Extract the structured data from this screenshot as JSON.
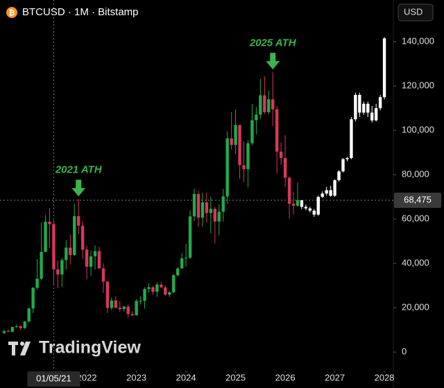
{
  "chart_data": {
    "type": "candlestick",
    "title": "BTCUSD · 1M · Bitstamp",
    "currency": "USD",
    "watermark": "TradingView",
    "x": [
      "2020-05",
      "2020-06",
      "2020-07",
      "2020-08",
      "2020-09",
      "2020-10",
      "2020-11",
      "2020-12",
      "2021-01",
      "2021-02",
      "2021-03",
      "2021-04",
      "2021-05",
      "2021-06",
      "2021-07",
      "2021-08",
      "2021-09",
      "2021-10",
      "2021-11",
      "2021-12",
      "2022-01",
      "2022-02",
      "2022-03",
      "2022-04",
      "2022-05",
      "2022-06",
      "2022-07",
      "2022-08",
      "2022-09",
      "2022-10",
      "2022-11",
      "2022-12",
      "2023-01",
      "2023-02",
      "2023-03",
      "2023-04",
      "2023-05",
      "2023-06",
      "2023-07",
      "2023-08",
      "2023-09",
      "2023-10",
      "2023-11",
      "2023-12",
      "2024-01",
      "2024-02",
      "2024-03",
      "2024-04",
      "2024-05",
      "2024-06",
      "2024-07",
      "2024-08",
      "2024-09",
      "2024-10",
      "2024-11",
      "2024-12",
      "2025-01",
      "2025-02",
      "2025-03",
      "2025-04",
      "2025-05",
      "2025-06",
      "2025-07",
      "2025-08",
      "2025-09",
      "2025-10",
      "2025-11",
      "2025-12",
      "2026-01",
      "2026-02",
      "2026-03",
      "2026-04"
    ],
    "open": [
      8600,
      9450,
      9140,
      11350,
      11650,
      10780,
      13800,
      19700,
      28990,
      33100,
      45200,
      58800,
      57700,
      37300,
      35000,
      41500,
      47100,
      43800,
      61300,
      57000,
      46200,
      38500,
      43200,
      45500,
      37700,
      31800,
      19900,
      23300,
      20050,
      19400,
      20500,
      17150,
      16550,
      23100,
      23150,
      28450,
      29250,
      27200,
      30450,
      29200,
      25900,
      26950,
      34650,
      37700,
      42250,
      42600,
      61200,
      71300,
      60600,
      67500,
      62700,
      64600,
      58900,
      63300,
      70200,
      96400,
      93400,
      102400,
      84300,
      82500,
      94200,
      104600,
      107100,
      115800,
      108200,
      114000,
      109500,
      90400,
      87500,
      78600,
      66900,
      66000
    ],
    "high": [
      10000,
      10400,
      11400,
      12450,
      12050,
      14100,
      19900,
      29300,
      41950,
      58350,
      61800,
      64900,
      59600,
      41300,
      42400,
      50500,
      52900,
      67000,
      69000,
      59100,
      47900,
      45800,
      48200,
      47400,
      40000,
      31900,
      24600,
      25200,
      22800,
      20900,
      21500,
      18400,
      23900,
      25200,
      29200,
      31000,
      29800,
      31400,
      31800,
      30200,
      27500,
      35200,
      38400,
      44700,
      48900,
      64000,
      73800,
      72700,
      71900,
      72000,
      70000,
      65600,
      66500,
      73600,
      99600,
      108300,
      109400,
      102500,
      95000,
      95700,
      111900,
      110500,
      123200,
      124400,
      117900,
      126200,
      111000,
      94600,
      97900,
      79200,
      72000,
      76500
    ],
    "low": [
      8100,
      8900,
      8900,
      10900,
      9850,
      10400,
      13200,
      17600,
      28130,
      32300,
      44950,
      47000,
      30000,
      28800,
      29300,
      37300,
      39600,
      43300,
      53300,
      42000,
      32900,
      34300,
      37200,
      37700,
      26700,
      17600,
      18800,
      19600,
      18200,
      18200,
      15500,
      16300,
      16500,
      21400,
      19600,
      26900,
      25800,
      24800,
      28900,
      25400,
      24900,
      26550,
      34100,
      37600,
      38500,
      41900,
      59100,
      56500,
      56600,
      58400,
      53500,
      49000,
      52600,
      58900,
      66800,
      91300,
      89200,
      78200,
      76600,
      74400,
      93300,
      98200,
      105100,
      107300,
      107300,
      102000,
      80600,
      84400,
      74500,
      60100,
      62000,
      65500
    ],
    "close": [
      9450,
      9140,
      11350,
      11650,
      10780,
      13800,
      19700,
      28990,
      33100,
      45200,
      58800,
      57700,
      37300,
      35000,
      41500,
      47100,
      43800,
      61300,
      57000,
      46200,
      38500,
      43200,
      45500,
      37700,
      31800,
      19900,
      23300,
      20050,
      19400,
      20500,
      17150,
      16550,
      23100,
      23150,
      28450,
      29250,
      27200,
      30450,
      29200,
      25900,
      26950,
      34650,
      37700,
      42250,
      42600,
      61200,
      71300,
      60600,
      67500,
      62700,
      64600,
      58900,
      63300,
      70200,
      96400,
      93400,
      102400,
      84300,
      82500,
      94200,
      104600,
      107100,
      115800,
      108200,
      114000,
      109500,
      90400,
      87500,
      78600,
      66900,
      66000,
      68475
    ],
    "up_color": "#22ab4a",
    "down_color": "#d8385a",
    "projection": {
      "color": "#ffffff",
      "x": [
        "2026-05",
        "2026-06",
        "2026-07",
        "2026-08",
        "2026-09",
        "2026-10",
        "2026-11",
        "2026-12",
        "2027-01",
        "2027-02",
        "2027-03",
        "2027-04",
        "2027-05",
        "2027-06",
        "2027-07",
        "2027-08",
        "2027-09",
        "2027-10",
        "2027-11",
        "2027-12",
        "2028-01"
      ],
      "open": [
        68475,
        65500,
        64800,
        63800,
        62000,
        70000,
        71500,
        73000,
        70500,
        77500,
        81500,
        87000,
        87500,
        105000,
        116000,
        108000,
        112000,
        108000,
        104500,
        110000,
        115000
      ],
      "high": [
        68500,
        66500,
        65500,
        64500,
        70500,
        72500,
        74500,
        75000,
        78000,
        82000,
        87500,
        88000,
        106000,
        117000,
        117000,
        113000,
        113000,
        111000,
        112000,
        116000,
        142000
      ],
      "low": [
        64500,
        64000,
        63000,
        61000,
        61500,
        69500,
        70500,
        70000,
        70000,
        77000,
        81000,
        86000,
        87000,
        104000,
        106000,
        107000,
        106000,
        103500,
        104000,
        109000,
        114000
      ],
      "close": [
        65500,
        64800,
        63800,
        62000,
        70000,
        71500,
        73000,
        70500,
        77500,
        81500,
        87000,
        87500,
        105000,
        116000,
        108000,
        112000,
        108000,
        104500,
        110000,
        115000,
        141500
      ]
    },
    "xlim": [
      "2020-04",
      "2028-03"
    ],
    "xticks": [
      {
        "value": "2022-01",
        "label": "2022"
      },
      {
        "value": "2023-01",
        "label": "2023"
      },
      {
        "value": "2024-01",
        "label": "2024"
      },
      {
        "value": "2025-01",
        "label": "2025"
      },
      {
        "value": "2026-01",
        "label": "2026"
      },
      {
        "value": "2027-01",
        "label": "2027"
      },
      {
        "value": "2028-01",
        "label": "2028"
      }
    ],
    "ylim": [
      -8400,
      158800
    ],
    "yticks": [
      0,
      {
        "value": 20000,
        "label": "20,000"
      },
      {
        "value": 40000,
        "label": "40,000"
      },
      {
        "value": 60000,
        "label": "60,000"
      },
      {
        "value": 80000,
        "label": "80,000"
      },
      {
        "value": 100000,
        "label": "100,000"
      },
      {
        "value": 120000,
        "label": "120,000"
      },
      {
        "value": 140000,
        "label": "140,000"
      }
    ],
    "last_price": {
      "value": 68475,
      "label": "68,475"
    },
    "crosshair": {
      "x": "2021-05",
      "label": "01/05/21"
    },
    "annotations": [
      {
        "text": "2021 ATH",
        "x": "2021-11"
      },
      {
        "text": "2025 ATH",
        "x": "2025-10"
      }
    ],
    "annotation_color": "#3cb44b"
  }
}
